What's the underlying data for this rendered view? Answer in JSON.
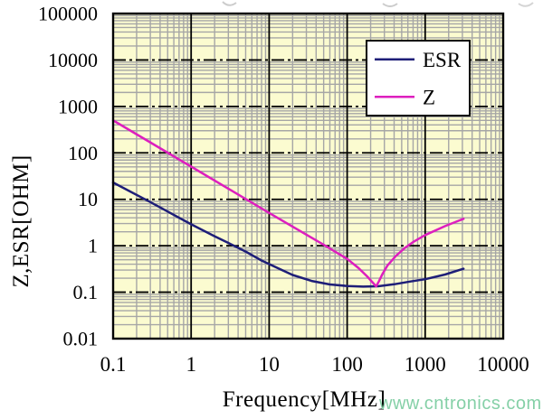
{
  "figure": {
    "watermark": {
      "text": "www.cntronics.com",
      "color": "#85d0a7"
    }
  },
  "chart_data": {
    "type": "line",
    "title": "",
    "xlabel": "Frequency[MHz]",
    "ylabel": "Z,ESR[OHM]",
    "x_scale": "log",
    "y_scale": "log",
    "xlim": [
      0.1,
      10000
    ],
    "ylim": [
      0.01,
      100000
    ],
    "x_ticks": [
      0.1,
      1,
      10,
      100,
      1000,
      10000
    ],
    "x_tick_labels": [
      "0.1",
      "1",
      "10",
      "100",
      "1000",
      "10000"
    ],
    "y_ticks": [
      100000,
      10000,
      1000,
      100,
      10,
      1,
      0.1,
      0.01
    ],
    "y_tick_labels": [
      "100000",
      "10000",
      "1000",
      "100",
      "10",
      "1",
      "0.1",
      "0.01"
    ],
    "grid": {
      "enabled": true,
      "plot_background": "#fbfbd0",
      "minor_color": "#a6a6a6",
      "major_color": "#000000",
      "frame_color": "#000000"
    },
    "legend": {
      "position": "upper right",
      "background": "#ffffff",
      "border_color": "#000000"
    },
    "series": [
      {
        "name": "ESR",
        "color": "#1e1e78",
        "points": [
          [
            0.1,
            23
          ],
          [
            0.3,
            8.7
          ],
          [
            1,
            2.9
          ],
          [
            2,
            1.6
          ],
          [
            3,
            1.15
          ],
          [
            5,
            0.75
          ],
          [
            8,
            0.48
          ],
          [
            12,
            0.35
          ],
          [
            20,
            0.235
          ],
          [
            35,
            0.175
          ],
          [
            60,
            0.147
          ],
          [
            100,
            0.136
          ],
          [
            160,
            0.132
          ],
          [
            250,
            0.134
          ],
          [
            400,
            0.148
          ],
          [
            650,
            0.17
          ],
          [
            1000,
            0.19
          ],
          [
            1800,
            0.24
          ],
          [
            3100,
            0.32
          ]
        ]
      },
      {
        "name": "Z",
        "color": "#dd1fbe",
        "points": [
          [
            0.1,
            500
          ],
          [
            1,
            50.5
          ],
          [
            10,
            5.1
          ],
          [
            50,
            1.05
          ],
          [
            100,
            0.52
          ],
          [
            140,
            0.33
          ],
          [
            180,
            0.22
          ],
          [
            215,
            0.158
          ],
          [
            235,
            0.133
          ],
          [
            255,
            0.17
          ],
          [
            285,
            0.25
          ],
          [
            330,
            0.38
          ],
          [
            420,
            0.6
          ],
          [
            550,
            0.9
          ],
          [
            700,
            1.2
          ],
          [
            1000,
            1.7
          ],
          [
            1800,
            2.65
          ],
          [
            3100,
            3.8
          ]
        ]
      }
    ]
  }
}
